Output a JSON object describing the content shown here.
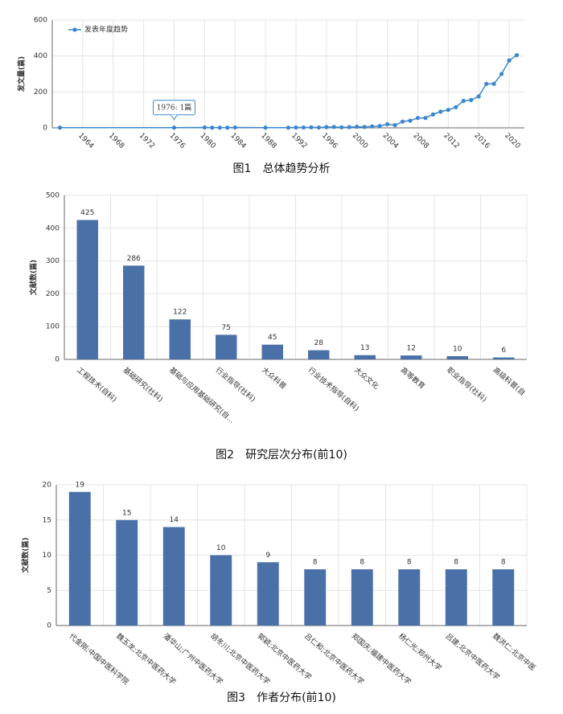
{
  "chart_data": [
    {
      "type": "line",
      "caption": "图1　总体趋势分析",
      "y_label": "发文量(篇)",
      "x": [
        1961,
        1976,
        1980,
        1981,
        1982,
        1983,
        1984,
        1988,
        1991,
        1992,
        1993,
        1994,
        1995,
        1996,
        1997,
        1998,
        1999,
        2000,
        2001,
        2002,
        2003,
        2004,
        2005,
        2006,
        2007,
        2008,
        2009,
        2010,
        2011,
        2012,
        2013,
        2014,
        2015,
        2016,
        2017,
        2018,
        2019,
        2020,
        2021
      ],
      "series": [
        {
          "name": "发表年度趋势",
          "color": "#3a87d0",
          "values": [
            1,
            1,
            2,
            1,
            1,
            1,
            2,
            1,
            1,
            2,
            2,
            3,
            2,
            4,
            5,
            3,
            4,
            6,
            5,
            8,
            10,
            20,
            15,
            35,
            40,
            55,
            55,
            75,
            90,
            100,
            115,
            150,
            155,
            175,
            245,
            245,
            300,
            375,
            405
          ]
        }
      ],
      "annotation": "1976: 1篇",
      "xlim": [
        1960,
        2022
      ],
      "xticks": [
        1964,
        1968,
        1972,
        1976,
        1980,
        1984,
        1988,
        1992,
        1996,
        2000,
        2004,
        2008,
        2012,
        2016,
        2020
      ],
      "ylim": [
        0,
        600
      ],
      "yticks": [
        0,
        200,
        400,
        600
      ],
      "grid": true,
      "legend": "top-left"
    },
    {
      "type": "bar",
      "caption": "图2　研究层次分布(前10)",
      "y_label": "文献数(篇)",
      "categories": [
        "工程技术(自科)",
        "基础研究(社科)",
        "基础与应用基础研究(自...",
        "行业指导(社科)",
        "大众科普",
        "行业技术指导(自科)",
        "大众文化",
        "高等教育",
        "职业指导(社科)",
        "高级科普(自"
      ],
      "values": [
        425,
        286,
        122,
        75,
        45,
        28,
        13,
        12,
        10,
        6
      ],
      "color": "#4a70a8",
      "ylim": [
        0,
        500
      ],
      "yticks": [
        0,
        100,
        200,
        300,
        400,
        500
      ],
      "grid": true
    },
    {
      "type": "bar",
      "caption": "图3　作者分布(前10)",
      "y_label": "文献数(篇)",
      "categories": [
        "代金刚;中国中医科学院",
        "魏玉龙;北京中医药大学",
        "潘华山;广州中医药大学",
        "胡冬川;北京中医药大学",
        "郭颖;北京中医药大学",
        "吕仁和;北京中医药大学",
        "郑国庆;福建中医药大学",
        "杨仁光;郑州大学",
        "吕建;北京中医药大学",
        "魏洪仁;北京中医"
      ],
      "values": [
        19,
        15,
        14,
        10,
        9,
        8,
        8,
        8,
        8,
        8
      ],
      "color": "#4a70a8",
      "ylim": [
        0,
        20
      ],
      "yticks": [
        0,
        5,
        10,
        15,
        20
      ],
      "grid": true
    }
  ]
}
